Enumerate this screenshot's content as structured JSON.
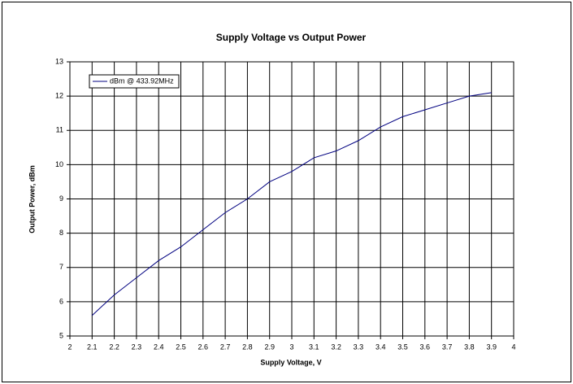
{
  "chart_data": {
    "type": "line",
    "title": "Supply Voltage vs Output Power",
    "x_label": "Supply Voltage, V",
    "y_label": "Output Power, dBm",
    "x": [
      2.1,
      2.2,
      2.3,
      2.4,
      2.5,
      2.6,
      2.7,
      2.8,
      2.9,
      3,
      3.1,
      3.2,
      3.3,
      3.4,
      3.5,
      3.6,
      3.7,
      3.8,
      3.9
    ],
    "series": [
      {
        "name": "dBm @ 433.92MHz",
        "color": "#000080",
        "values": [
          5.6,
          6.2,
          6.7,
          7.2,
          7.6,
          8.1,
          8.6,
          9.0,
          9.5,
          9.8,
          10.2,
          10.4,
          10.7,
          11.1,
          11.4,
          11.6,
          11.8,
          12.0,
          12.1
        ]
      }
    ],
    "xlim": [
      2,
      4
    ],
    "xticks": [
      2,
      2.1,
      2.2,
      2.3,
      2.4,
      2.5,
      2.6,
      2.7,
      2.8,
      2.9,
      3,
      3.1,
      3.2,
      3.3,
      3.4,
      3.5,
      3.6,
      3.7,
      3.8,
      3.9,
      4
    ],
    "ylim": [
      5,
      13
    ],
    "yticks": [
      5,
      6,
      7,
      8,
      9,
      10,
      11,
      12,
      13
    ],
    "grid": true,
    "legend": "top-left"
  }
}
